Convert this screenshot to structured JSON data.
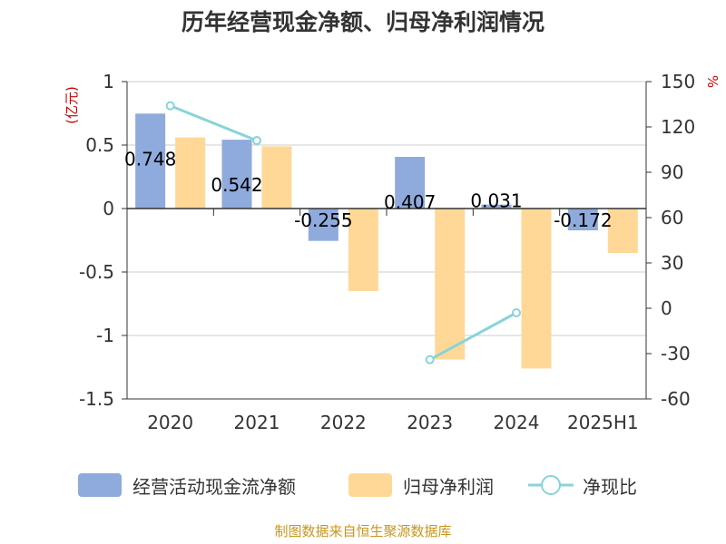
{
  "chart_data": {
    "type": "bar",
    "title": "历年经营现金净额、归母净利润情况",
    "left_unit": "(亿元)",
    "right_unit": "%",
    "categories": [
      "2020",
      "2021",
      "2022",
      "2023",
      "2024",
      "2025H1"
    ],
    "series": [
      {
        "name": "经营活动现金流净额",
        "kind": "bar",
        "axis": "left",
        "color": "#8faadc",
        "values": [
          0.748,
          0.542,
          -0.255,
          0.407,
          0.031,
          -0.172
        ],
        "labels": [
          "0.748",
          "0.542",
          "-0.255",
          "0.407",
          "0.031",
          "-0.172"
        ]
      },
      {
        "name": "归母净利润",
        "kind": "bar",
        "axis": "left",
        "color": "#ffd898",
        "values": [
          0.56,
          0.49,
          -0.65,
          -1.19,
          -1.26,
          -0.35
        ]
      },
      {
        "name": "净现比",
        "kind": "line",
        "axis": "right",
        "color": "#88d4d8",
        "values": [
          134,
          111,
          null,
          -34,
          -3,
          null
        ]
      }
    ],
    "left_axis": {
      "ylim": [
        -1.5,
        1
      ],
      "ticks": [
        "-1.5",
        "-1",
        "-0.5",
        "0",
        "0.5",
        "1"
      ],
      "tick_values": [
        -1.5,
        -1,
        -0.5,
        0,
        0.5,
        1
      ]
    },
    "right_axis": {
      "ylim": [
        -60,
        150
      ],
      "ticks": [
        "-60",
        "-30",
        "0",
        "30",
        "60",
        "90",
        "120",
        "150"
      ],
      "tick_values": [
        -60,
        -30,
        0,
        30,
        60,
        90,
        120,
        150
      ]
    },
    "grid": true,
    "legend": "bottom"
  },
  "footer": {
    "source": "制图数据来自恒生聚源数据库"
  }
}
